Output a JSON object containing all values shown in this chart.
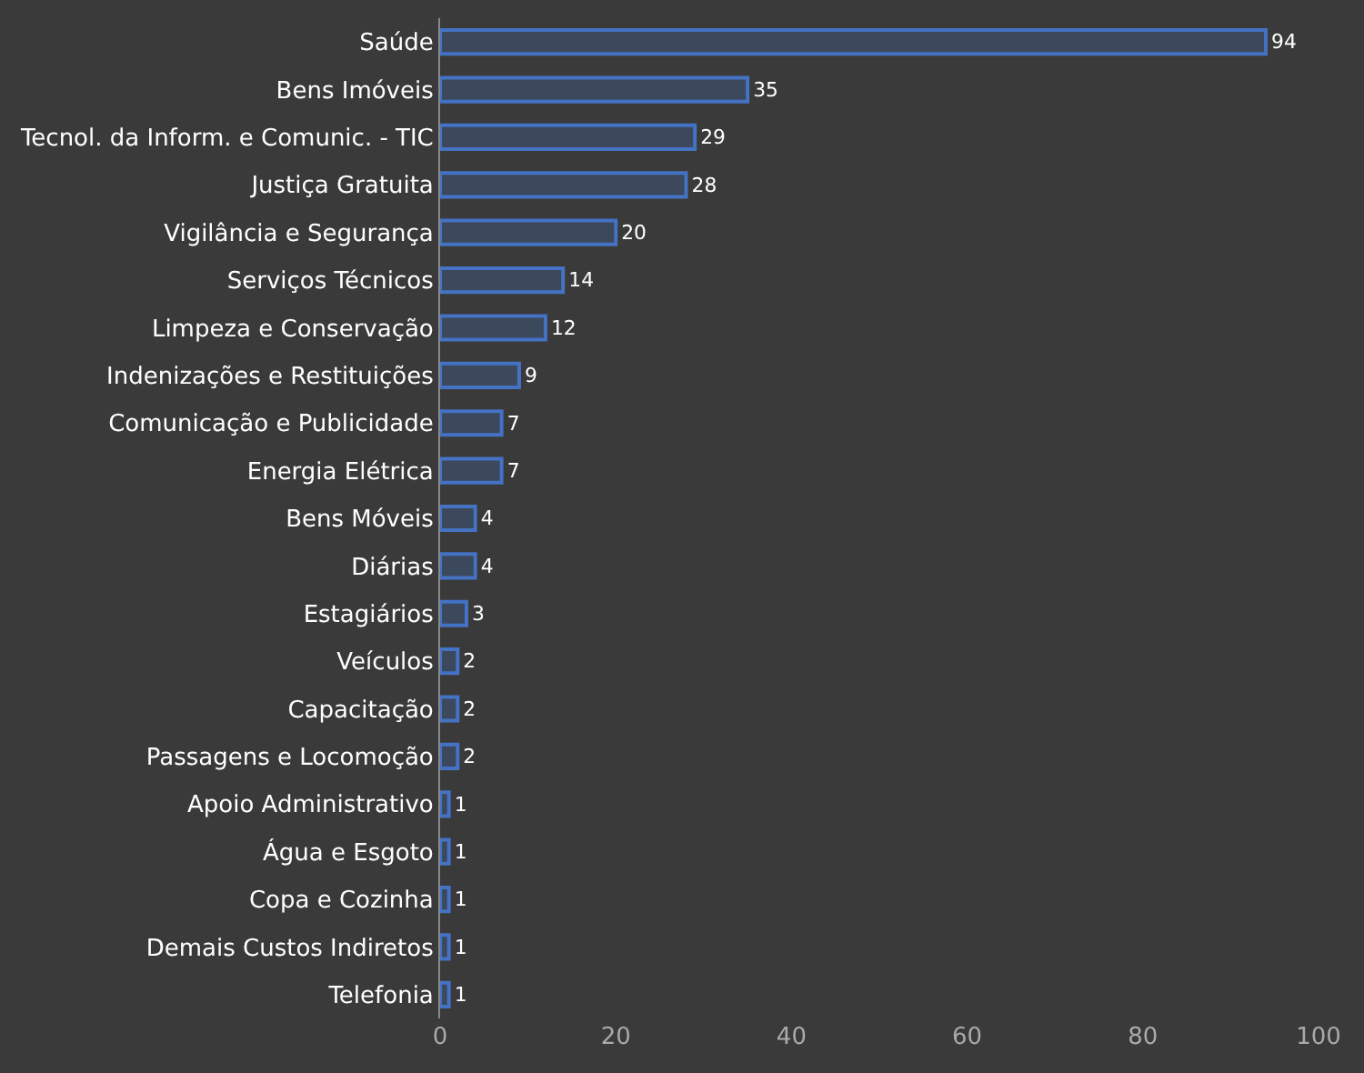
{
  "chart_data": {
    "type": "bar",
    "orientation": "horizontal",
    "categories": [
      "Saúde",
      "Bens Imóveis",
      "Tecnol. da Inform. e Comunic. - TIC",
      "Justiça Gratuita",
      "Vigilância e Segurança",
      "Serviços Técnicos",
      "Limpeza e Conservação",
      "Indenizações e Restituições",
      "Comunicação e Publicidade",
      "Energia Elétrica",
      "Bens Móveis",
      "Diárias",
      "Estagiários",
      "Veículos",
      "Capacitação",
      "Passagens e Locomoção",
      "Apoio Administrativo",
      "Água e Esgoto",
      "Copa e Cozinha",
      "Demais Custos Indiretos",
      "Telefonia"
    ],
    "values": [
      94,
      35,
      29,
      28,
      20,
      14,
      12,
      9,
      7,
      7,
      4,
      4,
      3,
      2,
      2,
      2,
      1,
      1,
      1,
      1,
      1
    ],
    "color": "#4472c4",
    "xlim": [
      0,
      100
    ],
    "xticks": [
      0,
      20,
      40,
      60,
      80,
      100
    ],
    "data_labels": true,
    "grid": false,
    "legend": false
  }
}
